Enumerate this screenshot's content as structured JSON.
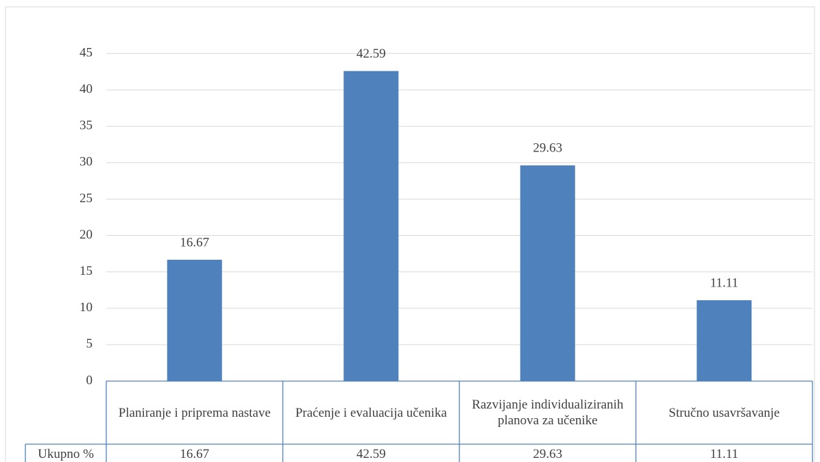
{
  "chart_data": {
    "type": "bar",
    "categories": [
      "Planiranje i priprema nastave",
      "Praćenje i evaluacija učenika",
      "Razvijanje individualiziranih planova za učenike",
      "Stručno usavršavanje"
    ],
    "values": [
      16.67,
      42.59,
      29.63,
      11.11
    ],
    "color": "#4f81bd",
    "ylim": [
      0,
      45
    ],
    "yticks": [
      0,
      5,
      10,
      15,
      20,
      25,
      30,
      35,
      40,
      45
    ],
    "grid": true,
    "data_table_row_label": "Ukupno %"
  }
}
